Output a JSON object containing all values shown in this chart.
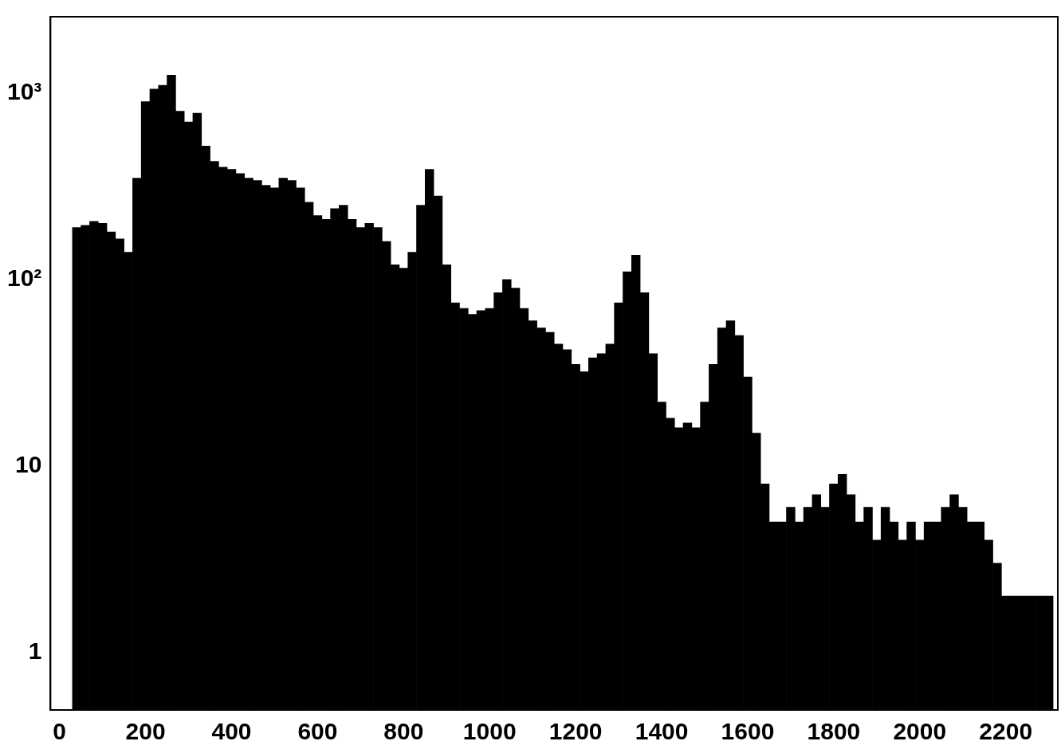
{
  "chart_data": {
    "type": "histogram",
    "log": "y",
    "grid": false,
    "legend": false,
    "xlim": [
      -21,
      2321
    ],
    "ylim": [
      0.49,
      2570
    ],
    "xticks": [
      0,
      200,
      400,
      600,
      800,
      1000,
      1200,
      1400,
      1600,
      1800,
      2000,
      2200
    ],
    "yticks": [
      1,
      10,
      {
        "value": 100,
        "label": "10²"
      },
      {
        "value": 1000,
        "label": "10³"
      }
    ],
    "bins": [
      30,
      50,
      70,
      90,
      110,
      130,
      150,
      170,
      190,
      210,
      230,
      250,
      270,
      290,
      310,
      330,
      350,
      370,
      390,
      410,
      430,
      450,
      470,
      490,
      510,
      530,
      550,
      570,
      590,
      610,
      630,
      650,
      670,
      690,
      710,
      730,
      750,
      770,
      790,
      810,
      830,
      850,
      870,
      890,
      910,
      930,
      950,
      970,
      990,
      1010,
      1030,
      1050,
      1070,
      1090,
      1110,
      1130,
      1150,
      1170,
      1190,
      1210,
      1230,
      1250,
      1270,
      1290,
      1310,
      1330,
      1350,
      1370,
      1390,
      1410,
      1430,
      1450,
      1470,
      1490,
      1510,
      1530,
      1550,
      1570,
      1590,
      1610,
      1630,
      1650,
      1670,
      1690,
      1710,
      1730,
      1750,
      1770,
      1790,
      1810,
      1830,
      1850,
      1870,
      1890,
      1910,
      1930,
      1950,
      1970,
      1990,
      2010,
      2030,
      2050,
      2070,
      2090,
      2110,
      2130,
      2150,
      2170,
      2190,
      2210,
      2230,
      2250,
      2270,
      2290,
      2310
    ],
    "color": "#000000",
    "values": [
      190,
      195,
      205,
      200,
      180,
      165,
      140,
      350,
      900,
      1050,
      1100,
      1250,
      800,
      700,
      780,
      520,
      430,
      400,
      390,
      370,
      350,
      340,
      320,
      310,
      350,
      340,
      310,
      260,
      220,
      210,
      240,
      250,
      210,
      190,
      200,
      190,
      160,
      120,
      115,
      140,
      250,
      390,
      280,
      120,
      75,
      70,
      65,
      68,
      70,
      85,
      100,
      90,
      70,
      60,
      55,
      52,
      45,
      42,
      35,
      32,
      38,
      40,
      45,
      75,
      110,
      135,
      85,
      40,
      22,
      18,
      16,
      17,
      16,
      22,
      35,
      55,
      60,
      50,
      30,
      15,
      8,
      5,
      5,
      6,
      5,
      6,
      7,
      6,
      8,
      9,
      7,
      5,
      6,
      4,
      6,
      5,
      4,
      5,
      4,
      5,
      5,
      6,
      7,
      6,
      5,
      5,
      4,
      3,
      2,
      2,
      2,
      2,
      2,
      2
    ]
  }
}
